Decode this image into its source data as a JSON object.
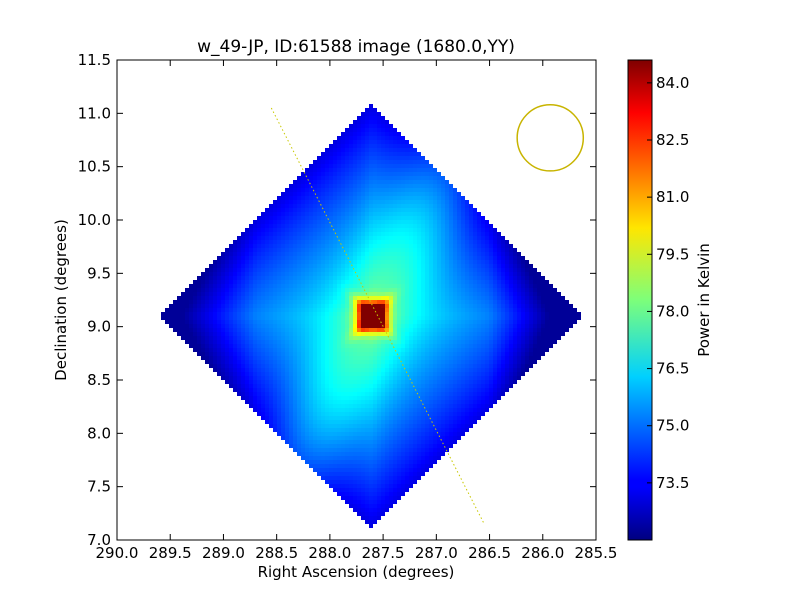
{
  "chart_data": {
    "type": "heatmap",
    "title": "w_49-JP, ID:61588 image (1680.0,YY)",
    "xlabel": "Right Ascension (degrees)",
    "ylabel": "Declination (degrees)",
    "xlim": [
      290.0,
      285.5
    ],
    "ylim": [
      7.0,
      11.5
    ],
    "x_inverted": true,
    "x_ticks": [
      "290.0",
      "289.5",
      "289.0",
      "288.5",
      "288.0",
      "287.5",
      "287.0",
      "286.5",
      "286.0",
      "285.5"
    ],
    "y_ticks": [
      "7.0",
      "7.5",
      "8.0",
      "8.5",
      "9.0",
      "9.5",
      "10.0",
      "10.5",
      "11.0",
      "11.5"
    ],
    "colorbar": {
      "label": "Power in Kelvin",
      "colormap": "jet",
      "range": [
        72.0,
        84.6
      ],
      "ticks": [
        "73.5",
        "75.0",
        "76.5",
        "78.0",
        "79.5",
        "81.0",
        "82.5",
        "84.0"
      ]
    },
    "map": {
      "footprint": "diamond",
      "center_ra": 287.6,
      "center_dec": 9.1,
      "peak_value": 84.6,
      "min_value": 72.3,
      "background_value": 75.0
    },
    "annotations": {
      "dotted_line": {
        "from": [
          288.55,
          11.05
        ],
        "to": [
          286.55,
          7.15
        ],
        "color": "#c8c800"
      },
      "beam_circle": {
        "center": [
          285.93,
          10.77
        ],
        "radius_deg": 0.31,
        "color": "#c8b400"
      }
    }
  }
}
